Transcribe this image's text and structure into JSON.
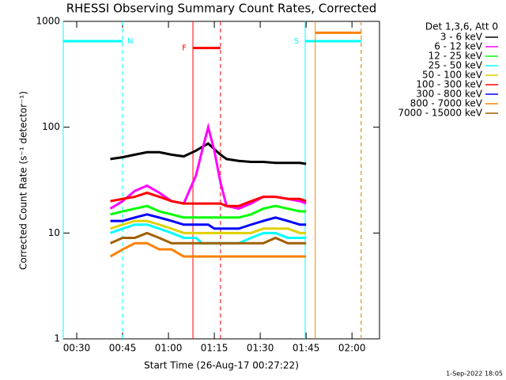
{
  "chart_data": {
    "type": "line",
    "title": "RHESSI Observing Summary Count Rates, Corrected",
    "xlabel": "Start Time (26-Aug-17 00:27:22)",
    "ylabel": "Corrected Count Rate (s⁻¹ detector⁻¹)",
    "legend_title": "Det 1,3,6, Att 0",
    "footer": "1-Sep-2022 18:05",
    "log_y": true,
    "legend": "outside-right",
    "xlim": [
      25.6,
      129
    ],
    "xticks": [
      {
        "value": 30,
        "label": "00:30"
      },
      {
        "value": 45,
        "label": "00:45"
      },
      {
        "value": 60,
        "label": "01:00"
      },
      {
        "value": 75,
        "label": "01:15"
      },
      {
        "value": 90,
        "label": "01:30"
      },
      {
        "value": 105,
        "label": "01:45"
      },
      {
        "value": 120,
        "label": "02:00"
      }
    ],
    "ylim": [
      1,
      1000
    ],
    "yticks": [
      1,
      10,
      100,
      1000
    ],
    "x": [
      41,
      45,
      49,
      53,
      57,
      61,
      65,
      69,
      71,
      73,
      75,
      77,
      79,
      83,
      87,
      91,
      95,
      99,
      103,
      105
    ],
    "series": [
      {
        "name": "3 - 6 keV",
        "color": "#000000",
        "values": [
          50,
          52,
          55,
          58,
          58,
          55,
          53,
          60,
          65,
          70,
          62,
          55,
          50,
          48,
          47,
          47,
          46,
          46,
          46,
          45
        ]
      },
      {
        "name": "6 - 12 keV",
        "color": "#ff00ff",
        "values": [
          17,
          20,
          25,
          28,
          24,
          20,
          19,
          35,
          60,
          100,
          60,
          30,
          18,
          17,
          19,
          22,
          22,
          21,
          20,
          19
        ]
      },
      {
        "name": "12 - 25 keV",
        "color": "#00ff00",
        "values": [
          15,
          16,
          17,
          18,
          16,
          15,
          14,
          14,
          14,
          14,
          14,
          14,
          14,
          14,
          15,
          17,
          18,
          17,
          16,
          16
        ]
      },
      {
        "name": "25 - 50 keV",
        "color": "#00ffff",
        "values": [
          10,
          11,
          12,
          12,
          11,
          10,
          9,
          9,
          8,
          8,
          8,
          8,
          8,
          8,
          9,
          10,
          10,
          9,
          9,
          9
        ]
      },
      {
        "name": "50 - 100 keV",
        "color": "#e0d000",
        "values": [
          11,
          12,
          13,
          13,
          12,
          11,
          10,
          10,
          10,
          10,
          10,
          10,
          10,
          10,
          10,
          11,
          11,
          11,
          10,
          10
        ]
      },
      {
        "name": "100 - 300 keV",
        "color": "#ff0000",
        "values": [
          20,
          21,
          22,
          24,
          22,
          20,
          19,
          19,
          19,
          19,
          19,
          19,
          18,
          18,
          20,
          22,
          22,
          21,
          21,
          20
        ]
      },
      {
        "name": "300 - 800 keV",
        "color": "#0000ff",
        "values": [
          13,
          13,
          14,
          15,
          14,
          13,
          12,
          12,
          12,
          12,
          11,
          11,
          11,
          11,
          12,
          13,
          14,
          13,
          12,
          12
        ]
      },
      {
        "name": "800 - 7000 keV",
        "color": "#ff8000",
        "values": [
          6,
          7,
          8,
          8,
          7,
          7,
          6,
          6,
          6,
          6,
          6,
          6,
          6,
          6,
          6,
          6,
          6,
          6,
          6,
          6
        ]
      },
      {
        "name": "7000 - 15000 keV",
        "color": "#a06000",
        "values": [
          8,
          9,
          9,
          10,
          9,
          8,
          8,
          8,
          8,
          8,
          8,
          8,
          8,
          8,
          8,
          8,
          9,
          8,
          8,
          8
        ]
      }
    ],
    "flags": [
      {
        "label": "N",
        "color": "#00ffff",
        "level": 650,
        "start": 25.6,
        "end": 45
      },
      {
        "label": "S",
        "color": "#00ffff",
        "level": 650,
        "start": 104.7,
        "end": 123
      },
      {
        "color": "#ff8000",
        "level": 780,
        "start": 108,
        "end": 123
      },
      {
        "label": "F",
        "color": "#ff0000",
        "level": 560,
        "start": 68,
        "end": 77
      }
    ]
  }
}
